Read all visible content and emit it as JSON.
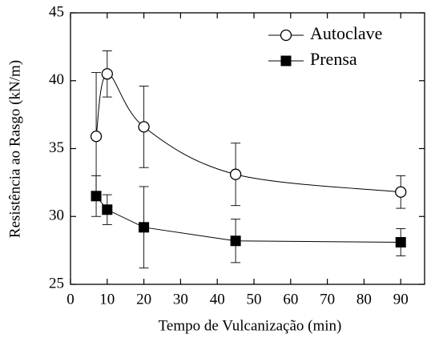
{
  "chart_data": {
    "type": "line",
    "xlabel": "Tempo de Vulcanização (min)",
    "ylabel": "Resistência ao Rasgo (kN/m)",
    "xlim": [
      0,
      96.5
    ],
    "xticks": [
      0,
      10,
      20,
      30,
      40,
      50,
      60,
      70,
      80,
      90
    ],
    "ylim": [
      25,
      45
    ],
    "yticks": [
      25,
      30,
      35,
      40,
      45
    ],
    "legend": "upper right",
    "series": [
      {
        "name": "Autoclave",
        "color": "#000000",
        "marker": "open-circle",
        "x": [
          7,
          10,
          20,
          45,
          90
        ],
        "values": [
          35.9,
          40.5,
          36.6,
          33.1,
          31.8
        ],
        "errors": [
          4.7,
          1.7,
          3.0,
          2.3,
          1.2
        ]
      },
      {
        "name": "Prensa",
        "color": "#000000",
        "marker": "filled-square",
        "x": [
          7,
          10,
          20,
          45,
          90
        ],
        "values": [
          31.5,
          30.5,
          29.2,
          28.2,
          28.1
        ],
        "errors": [
          1.5,
          1.1,
          3.0,
          1.6,
          1.0
        ]
      }
    ]
  }
}
